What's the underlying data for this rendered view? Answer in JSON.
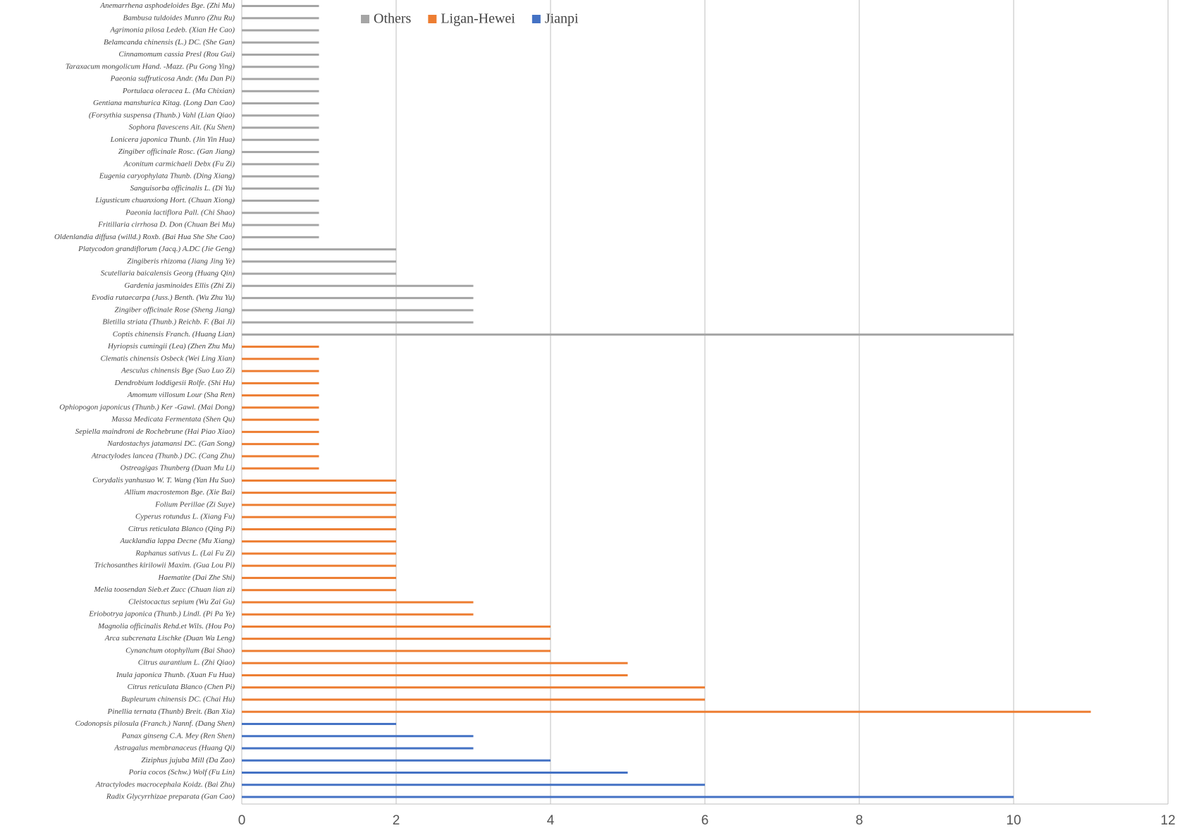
{
  "chart_data": {
    "type": "bar",
    "orientation": "horizontal",
    "categories": [
      "Anemarrhena asphodeloides Bge. (Zhi Mu)",
      "Bambusa tuldoides Munro (Zhu Ru)",
      "Agrimonia pilosa Ledeb. (Xian He Cao)",
      "Belamcanda chinensis (L.) DC. (She Gan)",
      "Cinnamomum cassia Presl (Rou Gui)",
      "Taraxacum mongolicum Hand. -Mazz. (Pu Gong Ying)",
      "Paeonia suffruticosa Andr. (Mu Dan Pi)",
      "Portulaca oleracea L. (Ma Chixian)",
      "Gentiana manshurica Kitag. (Long Dan Cao)",
      "(Forsythia suspensa (Thunb.) Vahl (Lian Qiao)",
      "Sophora flavescens Ait. (Ku Shen)",
      "Lonicera japonica Thunb. (Jin Yin Hua)",
      "Zingiber officinale Rosc. (Gan Jiang)",
      "Aconitum carmichaeli Debx (Fu Zi)",
      "Eugenia caryophylata Thunb. (Ding Xiang)",
      "Sanguisorba officinalis L. (Di Yu)",
      "Ligusticum chuanxiong Hort. (Chuan Xiong)",
      "Paeonia lactiflora Pall. (Chi Shao)",
      "Fritillaria cirrhosa D. Don (Chuan Bei Mu)",
      "Oldenlandia diffusa (willd.) Roxb. (Bai Hua She She Cao)",
      "Platycodon grandiflorum (Jacq.) A.DC (Jie Geng)",
      "Zingiberis rhizoma (Jiang Jing Ye)",
      "Scutellaria baicalensis Georg (Huang Qin)",
      "Gardenia jasminoides Ellis (Zhi Zi)",
      "Evodia rutaecarpa (Juss.) Benth. (Wu Zhu Yu)",
      "Zingiber officinale Rose (Sheng Jiang)",
      "Bletilla striata (Thunb.) Reichb. F. (Bai Ji)",
      "Coptis chinensis Franch. (Huang Lian)",
      "Hyriopsis cumingii (Lea) (Zhen Zhu Mu)",
      "Clematis chinensis Osbeck (Wei Ling Xian)",
      "Aesculus chinensis Bge (Suo Luo Zi)",
      "Dendrobium loddigesii Rolfe. (Shi Hu)",
      "Amomum villosum Lour (Sha Ren)",
      "Ophiopogon japonicus (Thunb.) Ker -Gawl. (Mai Dong)",
      "Massa Medicata Fermentata (Shen Qu)",
      "Sepiella maindroni de Rochebrune (Hai Piao Xiao)",
      "Nardostachys jatamansi DC. (Gan Song)",
      "Atractylodes lancea (Thunb.) DC. (Cang Zhu)",
      "Ostreagigas Thunberg (Duan Mu Li)",
      "Corydalis yanhusuo W. T. Wang (Yan Hu Suo)",
      "Allium macrostemon Bge. (Xie Bai)",
      "Folium Perillae (Zi Suye)",
      "Cyperus rotundus L. (Xiang Fu)",
      "Citrus reticulata Blanco (Qing Pi)",
      "Aucklandia lappa Decne (Mu Xiang)",
      "Raphanus sativus L. (Lai Fu Zi)",
      "Trichosanthes kirilowii Maxim. (Gua Lou Pi)",
      "Haematite (Dai Zhe Shi)",
      "Melia toosendan Sieb.et Zucc (Chuan lian zi)",
      "Cleistocactus sepium (Wu Zai Gu)",
      "Eriobotrya japonica (Thunb.) Lindl. (Pi Pa Ye)",
      "Magnolia officinalis Rehd.et Wils. (Hou Po)",
      "Arca subcrenata Lischke (Duan Wa Leng)",
      "Cynanchum otophyllum (Bai Shao)",
      "Citrus aurantium L. (Zhi Qiao)",
      "Inula japonica Thunb. (Xuan Fu Hua)",
      "Citrus reticulata Blanco (Chen Pi)",
      "Bupleurum chinensis DC. (Chai Hu)",
      "Pinellia ternata (Thunb) Breit. (Ban Xia)",
      "Codonopsis pilosula (Franch.) Nannf. (Dang Shen)",
      "Panax ginseng C.A. Mey (Ren Shen)",
      "Astragalus membranaceus (Huang Qi)",
      "Ziziphus jujuba Mill (Da Zao)",
      "Poria cocos (Schw.) Wolf (Fu Lin)",
      "Atractylodes macrocephala Koidz. (Bai Zhu)",
      "Radix Glycyrrhizae preparata (Gan Cao)"
    ],
    "series": [
      {
        "name": "Others",
        "color": "#a5a5a5",
        "values": [
          1,
          1,
          1,
          1,
          1,
          1,
          1,
          1,
          1,
          1,
          1,
          1,
          1,
          1,
          1,
          1,
          1,
          1,
          1,
          1,
          2,
          2,
          2,
          3,
          3,
          3,
          3,
          10,
          null,
          null,
          null,
          null,
          null,
          null,
          null,
          null,
          null,
          null,
          null,
          null,
          null,
          null,
          null,
          null,
          null,
          null,
          null,
          null,
          null,
          null,
          null,
          null,
          null,
          null,
          null,
          null,
          null,
          null,
          null,
          null,
          null,
          null,
          null,
          null,
          null,
          null
        ]
      },
      {
        "name": "Ligan-Hewei",
        "color": "#ed7d31",
        "values": [
          null,
          null,
          null,
          null,
          null,
          null,
          null,
          null,
          null,
          null,
          null,
          null,
          null,
          null,
          null,
          null,
          null,
          null,
          null,
          null,
          null,
          null,
          null,
          null,
          null,
          null,
          null,
          null,
          1,
          1,
          1,
          1,
          1,
          1,
          1,
          1,
          1,
          1,
          1,
          2,
          2,
          2,
          2,
          2,
          2,
          2,
          2,
          2,
          2,
          3,
          3,
          4,
          4,
          4,
          5,
          5,
          6,
          6,
          11,
          null,
          null,
          null,
          null,
          null,
          null,
          null
        ]
      },
      {
        "name": "Jianpi",
        "color": "#4472c4",
        "values": [
          null,
          null,
          null,
          null,
          null,
          null,
          null,
          null,
          null,
          null,
          null,
          null,
          null,
          null,
          null,
          null,
          null,
          null,
          null,
          null,
          null,
          null,
          null,
          null,
          null,
          null,
          null,
          null,
          null,
          null,
          null,
          null,
          null,
          null,
          null,
          null,
          null,
          null,
          null,
          null,
          null,
          null,
          null,
          null,
          null,
          null,
          null,
          null,
          null,
          null,
          null,
          null,
          null,
          null,
          null,
          null,
          null,
          null,
          null,
          2,
          3,
          3,
          4,
          5,
          6,
          10
        ]
      }
    ],
    "xlim": [
      0,
      12
    ],
    "xticks": [
      0,
      2,
      4,
      6,
      8,
      10,
      12
    ],
    "grid": true,
    "legend": "top"
  }
}
